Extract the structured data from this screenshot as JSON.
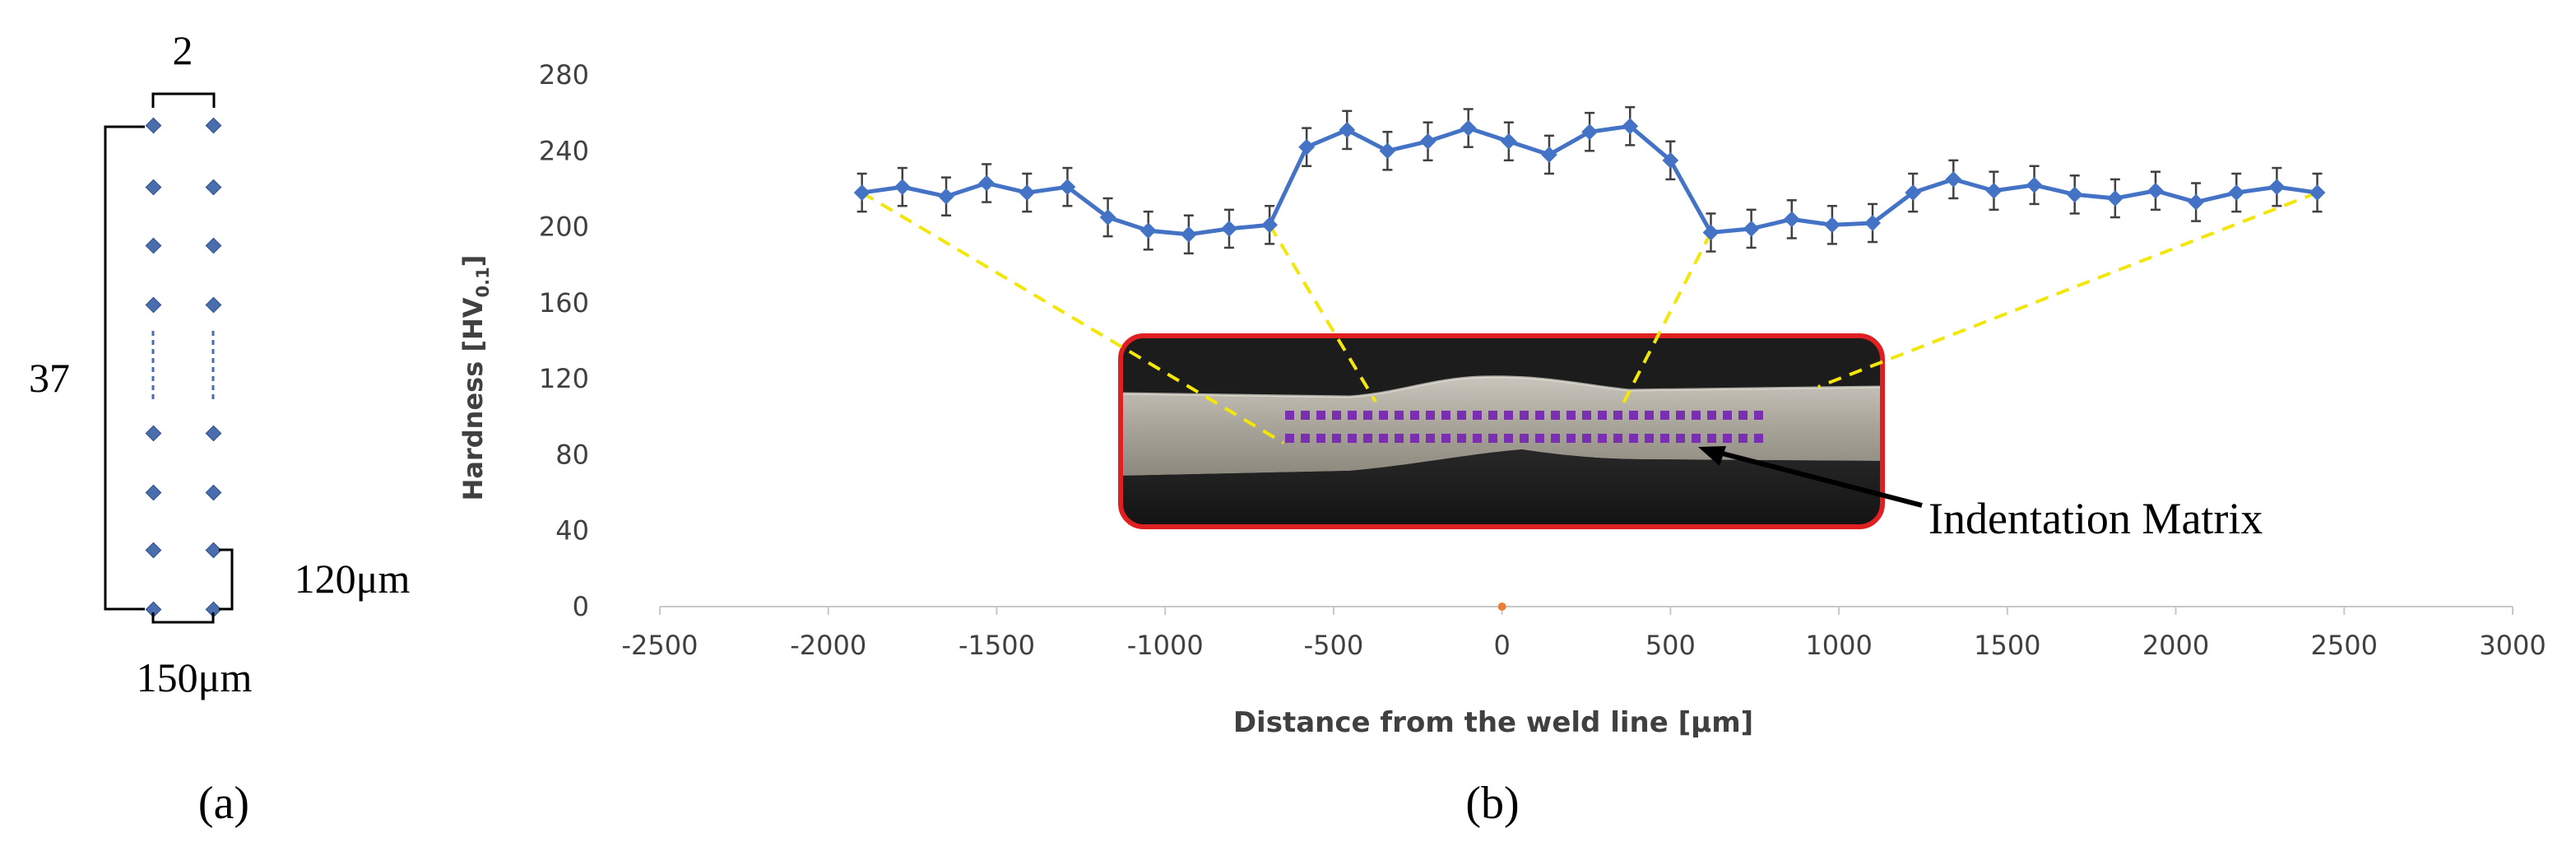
{
  "panel_a": {
    "label": "(a)",
    "columns_label": "2",
    "rows_label": "37",
    "row_spacing_label": "120μm",
    "column_spacing_label": "150μm"
  },
  "panel_b": {
    "label": "(b)",
    "inset_label": "Indentation Matrix"
  },
  "chart_data": {
    "type": "line",
    "title": "",
    "xlabel": "Distance from the weld line [μm]",
    "ylabel_main": "Hardness [HV",
    "ylabel_sub": "0.1",
    "ylabel_tail": "]",
    "xlim": [
      -2500,
      3000
    ],
    "ylim": [
      0,
      280
    ],
    "xticks": [
      -2500,
      -2000,
      -1500,
      -1000,
      -500,
      0,
      500,
      1000,
      1500,
      2000,
      2500,
      3000
    ],
    "yticks": [
      0,
      40,
      80,
      120,
      160,
      200,
      240,
      280
    ],
    "xtick_labels": [
      "-2500",
      "-2000",
      "-1500",
      "-1000",
      "-500",
      "0",
      "500",
      "1000",
      "1500",
      "2000",
      "2500",
      "3000"
    ],
    "ytick_labels": [
      "0",
      "40",
      "80",
      "120",
      "160",
      "200",
      "240",
      "280"
    ],
    "grid": false,
    "series": [
      {
        "name": "Hardness",
        "color": "#4472C4",
        "x": [
          -1900,
          -1780,
          -1650,
          -1530,
          -1410,
          -1290,
          -1170,
          -1050,
          -930,
          -810,
          -690,
          -580,
          -460,
          -340,
          -220,
          -100,
          20,
          140,
          260,
          380,
          500,
          620,
          740,
          860,
          980,
          1100,
          1220,
          1340,
          1460,
          1580,
          1700,
          1820,
          1940,
          2060,
          2180,
          2300,
          2420
        ],
        "y": [
          218,
          221,
          216,
          223,
          218,
          221,
          205,
          198,
          196,
          199,
          201,
          242,
          251,
          240,
          245,
          252,
          245,
          238,
          250,
          253,
          235,
          197,
          199,
          204,
          201,
          202,
          218,
          225,
          219,
          222,
          217,
          215,
          219,
          213,
          218,
          221,
          218
        ],
        "error": 10
      }
    ],
    "zero_marker": {
      "x": 0,
      "y": 0,
      "color": "#ED7D31"
    },
    "colors": {
      "series": "#4472C4",
      "error_bars": "#404040",
      "dashed_lines": "#F2E60A",
      "inset_border": "#E02020",
      "indent_dots": "#7A2FB0",
      "arrow": "#000000",
      "matrix_dots": "#4A6DAE"
    }
  }
}
